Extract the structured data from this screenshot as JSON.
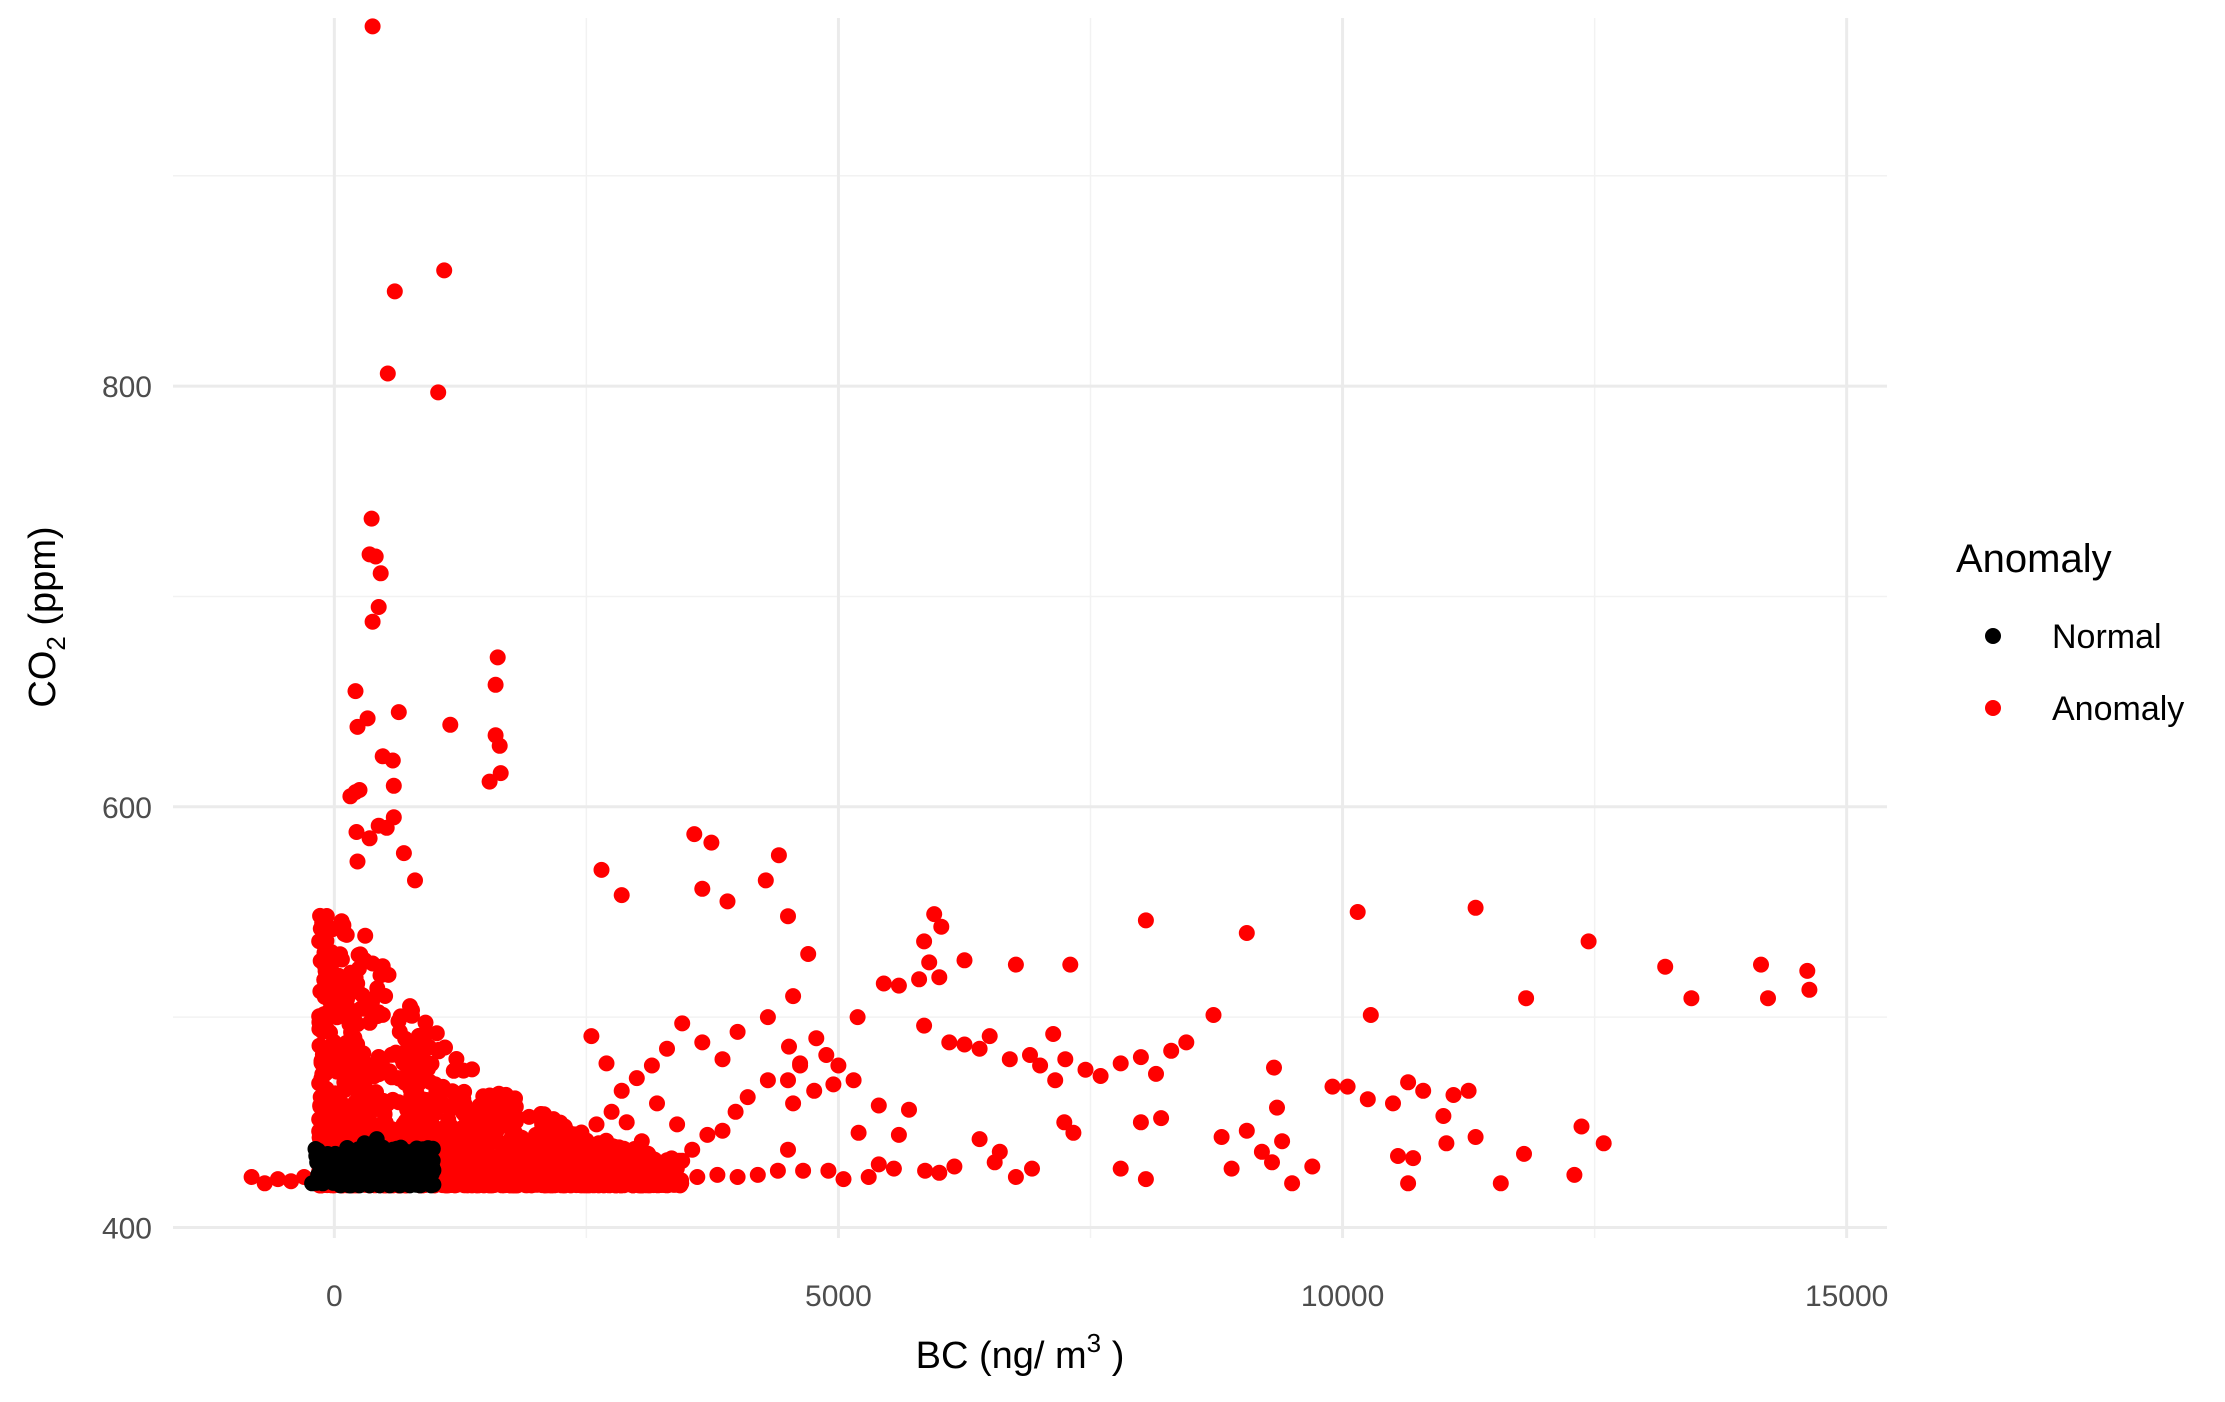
{
  "chart_data": {
    "type": "scatter",
    "title": "",
    "xlabel": {
      "prefix": "BC (ng/ m",
      "sup": "3",
      "suffix": " )"
    },
    "ylabel": {
      "prefix": "CO",
      "sub": "2",
      "suffix": "  (ppm)"
    },
    "xlim": [
      -1600,
      15400
    ],
    "ylim": [
      395,
      975
    ],
    "x_ticks": [
      0,
      5000,
      10000,
      15000
    ],
    "x_tick_labels": [
      "0",
      "5000",
      "10000",
      "15000"
    ],
    "y_ticks": [
      400,
      600,
      800
    ],
    "y_tick_labels": [
      "400",
      "600",
      "800"
    ],
    "grid": true,
    "legend": {
      "title": "Anomaly",
      "position": "right",
      "entries": [
        {
          "name": "Normal",
          "color": "#000000"
        },
        {
          "name": "Anomaly",
          "color": "#ff0000"
        }
      ]
    },
    "series": [
      {
        "name": "Anomaly",
        "color": "#ff0000",
        "points": [
          [
            380,
            971
          ],
          [
            1090,
            855
          ],
          [
            600,
            845
          ],
          [
            530,
            806
          ],
          [
            1030,
            797
          ],
          [
            370,
            737
          ],
          [
            350,
            720
          ],
          [
            410,
            719
          ],
          [
            460,
            711
          ],
          [
            440,
            695
          ],
          [
            380,
            688
          ],
          [
            1620,
            671
          ],
          [
            1600,
            658
          ],
          [
            210,
            655
          ],
          [
            640,
            645
          ],
          [
            1600,
            634
          ],
          [
            1640,
            629
          ],
          [
            1150,
            639
          ],
          [
            330,
            642
          ],
          [
            230,
            638
          ],
          [
            480,
            624
          ],
          [
            580,
            622
          ],
          [
            1650,
            616
          ],
          [
            590,
            610
          ],
          [
            210,
            607
          ],
          [
            1540,
            612
          ],
          [
            160,
            605
          ],
          [
            250,
            608
          ],
          [
            590,
            595
          ],
          [
            440,
            591
          ],
          [
            520,
            590
          ],
          [
            220,
            588
          ],
          [
            350,
            585
          ],
          [
            690,
            578
          ],
          [
            230,
            574
          ],
          [
            800,
            565
          ],
          [
            3570,
            587
          ],
          [
            3740,
            583
          ],
          [
            4410,
            577
          ],
          [
            4280,
            565
          ],
          [
            2650,
            570
          ],
          [
            2850,
            558
          ],
          [
            3650,
            561
          ],
          [
            3900,
            555
          ],
          [
            4500,
            548
          ],
          [
            5950,
            549
          ],
          [
            6020,
            543
          ],
          [
            5850,
            536
          ],
          [
            5900,
            526
          ],
          [
            6250,
            527
          ],
          [
            6760,
            525
          ],
          [
            7300,
            525
          ],
          [
            8050,
            546
          ],
          [
            9050,
            540
          ],
          [
            10150,
            550
          ],
          [
            11320,
            552
          ],
          [
            12440,
            536
          ],
          [
            13200,
            524
          ],
          [
            14150,
            525
          ],
          [
            14610,
            522
          ],
          [
            14630,
            513
          ],
          [
            13460,
            509
          ],
          [
            14220,
            509
          ],
          [
            11820,
            509
          ],
          [
            10280,
            501
          ],
          [
            8720,
            501
          ],
          [
            7130,
            492
          ],
          [
            5190,
            500
          ],
          [
            5450,
            516
          ],
          [
            5600,
            515
          ],
          [
            5800,
            518
          ],
          [
            6000,
            519
          ],
          [
            5850,
            496
          ],
          [
            6100,
            488
          ],
          [
            6250,
            487
          ],
          [
            6400,
            485
          ],
          [
            6500,
            491
          ],
          [
            6700,
            480
          ],
          [
            6900,
            482
          ],
          [
            7000,
            477
          ],
          [
            7150,
            470
          ],
          [
            7250,
            480
          ],
          [
            7450,
            475
          ],
          [
            7600,
            472
          ],
          [
            7800,
            478
          ],
          [
            8000,
            481
          ],
          [
            8150,
            473
          ],
          [
            8300,
            484
          ],
          [
            8450,
            488
          ],
          [
            8200,
            452
          ],
          [
            8000,
            450
          ],
          [
            7800,
            428
          ],
          [
            8050,
            423
          ],
          [
            8800,
            443
          ],
          [
            8900,
            428
          ],
          [
            9050,
            446
          ],
          [
            9200,
            436
          ],
          [
            9300,
            431
          ],
          [
            9400,
            441
          ],
          [
            9500,
            421
          ],
          [
            9700,
            429
          ],
          [
            9320,
            476
          ],
          [
            9350,
            457
          ],
          [
            9900,
            467
          ],
          [
            10050,
            467
          ],
          [
            10250,
            461
          ],
          [
            10500,
            459
          ],
          [
            10650,
            469
          ],
          [
            10800,
            465
          ],
          [
            11000,
            453
          ],
          [
            11100,
            463
          ],
          [
            11250,
            465
          ],
          [
            11320,
            443
          ],
          [
            11030,
            440
          ],
          [
            10700,
            433
          ],
          [
            10550,
            434
          ],
          [
            10650,
            421
          ],
          [
            11570,
            421
          ],
          [
            11800,
            435
          ],
          [
            12300,
            425
          ],
          [
            12370,
            448
          ],
          [
            12590,
            440
          ],
          [
            7240,
            450
          ],
          [
            7330,
            445
          ],
          [
            6760,
            424
          ],
          [
            6920,
            428
          ],
          [
            6400,
            442
          ],
          [
            6600,
            436
          ],
          [
            6550,
            431
          ],
          [
            6150,
            429
          ],
          [
            6000,
            426
          ],
          [
            5860,
            427
          ],
          [
            5550,
            428
          ],
          [
            5400,
            430
          ],
          [
            5300,
            424
          ],
          [
            5050,
            423
          ],
          [
            4900,
            427
          ],
          [
            4650,
            427
          ],
          [
            4500,
            437
          ],
          [
            4400,
            427
          ],
          [
            4200,
            425
          ],
          [
            4000,
            424
          ],
          [
            3800,
            425
          ],
          [
            3600,
            424
          ],
          [
            5200,
            445
          ],
          [
            5600,
            444
          ],
          [
            5700,
            456
          ],
          [
            5400,
            458
          ],
          [
            5150,
            470
          ],
          [
            4950,
            468
          ],
          [
            4760,
            465
          ],
          [
            4620,
            477
          ],
          [
            4550,
            459
          ],
          [
            4500,
            470
          ],
          [
            4300,
            470
          ],
          [
            4100,
            462
          ],
          [
            3980,
            455
          ],
          [
            3850,
            446
          ],
          [
            3700,
            444
          ],
          [
            3550,
            437
          ],
          [
            3400,
            449
          ],
          [
            3200,
            459
          ],
          [
            3050,
            441
          ],
          [
            2900,
            450
          ],
          [
            2750,
            455
          ],
          [
            2600,
            449
          ],
          [
            4700,
            530
          ],
          [
            4550,
            510
          ],
          [
            4300,
            500
          ],
          [
            4000,
            493
          ],
          [
            3850,
            480
          ],
          [
            3650,
            488
          ],
          [
            3450,
            497
          ],
          [
            3300,
            485
          ],
          [
            3150,
            477
          ],
          [
            3000,
            471
          ],
          [
            2850,
            465
          ],
          [
            2700,
            478
          ],
          [
            2550,
            491
          ],
          [
            4780,
            490
          ],
          [
            4620,
            478
          ],
          [
            4510,
            486
          ],
          [
            4880,
            482
          ],
          [
            5000,
            477
          ],
          [
            -820,
            424
          ],
          [
            -690,
            421
          ],
          [
            -560,
            423
          ],
          [
            -430,
            422
          ],
          [
            -300,
            424
          ]
        ]
      },
      {
        "name": "Normal",
        "color": "#000000",
        "points": [
          [
            -220,
            421
          ],
          [
            -160,
            425
          ],
          [
            -90,
            423
          ],
          [
            -30,
            428
          ],
          [
            30,
            422
          ],
          [
            80,
            430
          ],
          [
            120,
            424
          ],
          [
            160,
            433
          ],
          [
            200,
            426
          ],
          [
            240,
            435
          ],
          [
            280,
            422
          ],
          [
            320,
            430
          ],
          [
            360,
            436
          ],
          [
            400,
            425
          ],
          [
            440,
            431
          ],
          [
            480,
            438
          ],
          [
            520,
            423
          ],
          [
            560,
            429
          ],
          [
            600,
            434
          ],
          [
            640,
            421
          ],
          [
            680,
            427
          ],
          [
            720,
            432
          ],
          [
            760,
            424
          ],
          [
            800,
            430
          ],
          [
            840,
            422
          ],
          [
            880,
            426
          ],
          [
            920,
            423
          ],
          [
            960,
            420
          ],
          [
            10,
            435
          ],
          [
            60,
            420
          ],
          [
            150,
            420
          ],
          [
            250,
            420
          ],
          [
            350,
            420
          ],
          [
            450,
            420
          ],
          [
            550,
            420
          ],
          [
            650,
            420
          ],
          [
            750,
            420
          ],
          [
            850,
            420
          ],
          [
            300,
            440
          ],
          [
            420,
            442
          ],
          [
            500,
            432
          ],
          [
            580,
            437
          ],
          [
            660,
            438
          ],
          [
            700,
            435
          ],
          [
            780,
            436
          ]
        ]
      }
    ]
  }
}
